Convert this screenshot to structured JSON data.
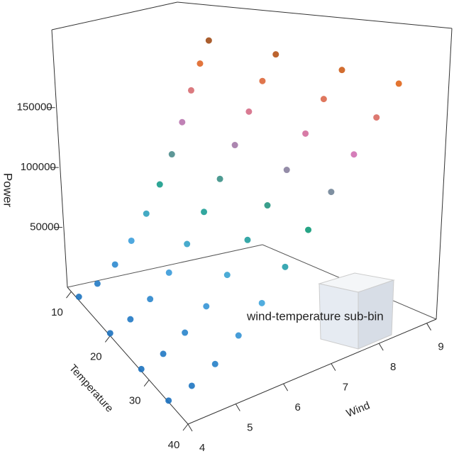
{
  "chart_data": {
    "type": "scatter3d",
    "x_label": "Wind",
    "y_label": "Temperature",
    "z_label": "Power",
    "annotation": "wind-temperature sub-bin",
    "xlim": [
      4,
      9.2
    ],
    "xticks": [
      4,
      5,
      6,
      7,
      8,
      9
    ],
    "ylim": [
      9,
      40
    ],
    "yticks": [
      10,
      20,
      30,
      40
    ],
    "zlim": [
      0,
      215000
    ],
    "zticks": [
      50000,
      100000,
      150000
    ],
    "colorscale": [
      "#1a6fbd",
      "#40a4e0",
      "#0e9a78",
      "#d06fb5",
      "#e0651a",
      "#111111"
    ],
    "wind": [
      4,
      4,
      4,
      4,
      4.5,
      4.5,
      4.5,
      4.5,
      5,
      5,
      5,
      5,
      5.5,
      5.5,
      5.5,
      5.5,
      6,
      6,
      6,
      6,
      6.5,
      6.5,
      6.5,
      6.5,
      7,
      7,
      7,
      7,
      7.5,
      7.5,
      7.5,
      7.5,
      8,
      8,
      8,
      8,
      8.5,
      8.5,
      8.5,
      8.5,
      9,
      9,
      9,
      9
    ],
    "temperature": [
      12,
      20,
      28,
      35,
      12,
      20,
      28,
      35,
      12,
      20,
      28,
      35,
      12,
      20,
      28,
      35,
      12,
      20,
      28,
      35,
      12,
      20,
      28,
      35,
      12,
      20,
      28,
      35,
      12,
      20,
      28,
      35,
      12,
      20,
      28,
      35,
      12,
      20,
      28,
      35,
      12,
      20,
      28,
      35
    ],
    "power": [
      3000,
      2000,
      1500,
      1000,
      10000,
      8000,
      7000,
      5000,
      22000,
      19000,
      17000,
      14000,
      38000,
      35000,
      31000,
      28000,
      57000,
      53000,
      49000,
      45000,
      78000,
      74000,
      70000,
      65000,
      100000,
      96000,
      91000,
      86000,
      124000,
      119000,
      113000,
      108000,
      148000,
      142000,
      136000,
      130000,
      168000,
      163000,
      158000,
      152000,
      185000,
      181000,
      176000,
      172000
    ]
  }
}
